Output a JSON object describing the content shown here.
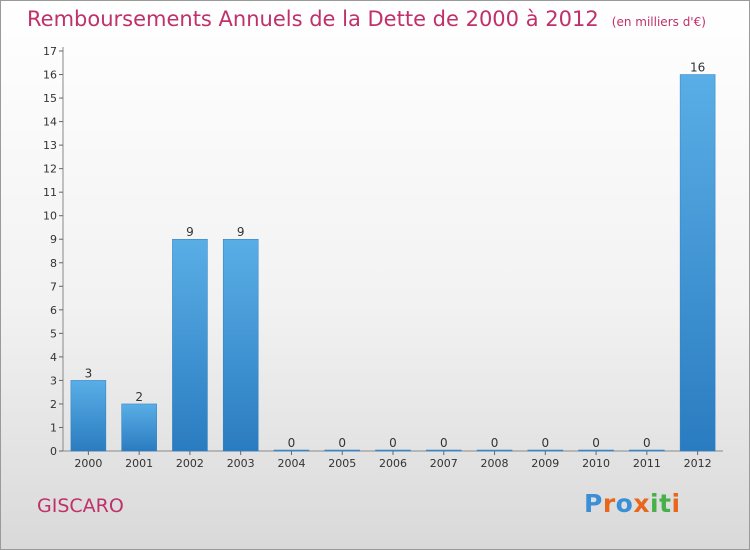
{
  "title": "Remboursements Annuels de la Dette de 2000 à 2012",
  "unit": "(en milliers d'€)",
  "commune": "GISCARO",
  "brand": {
    "letters": [
      "P",
      "r",
      "o",
      "x",
      "i",
      "t",
      "i"
    ]
  },
  "colors": {
    "title": "#c0306a",
    "bar_top": "#5aaee6",
    "bar_bottom": "#2a7cc0",
    "brand_letters": [
      "#3a8fd6",
      "#e8671c",
      "#3a8fd6",
      "#e8671c",
      "#48b048",
      "#48b048",
      "#e8671c"
    ]
  },
  "chart_data": {
    "type": "bar",
    "categories": [
      "2000",
      "2001",
      "2002",
      "2003",
      "2004",
      "2005",
      "2006",
      "2007",
      "2008",
      "2009",
      "2010",
      "2011",
      "2012"
    ],
    "values": [
      3,
      2,
      9,
      9,
      0,
      0,
      0,
      0,
      0,
      0,
      0,
      0,
      16
    ],
    "data_labels": [
      "3",
      "2",
      "9",
      "9",
      "0",
      "0",
      "0",
      "0",
      "0",
      "0",
      "0",
      "0",
      "16"
    ],
    "y_ticks": [
      0,
      1,
      2,
      3,
      4,
      5,
      6,
      7,
      8,
      9,
      10,
      11,
      12,
      13,
      14,
      15,
      16,
      17
    ],
    "ylim": [
      0,
      17
    ],
    "grid": false,
    "legend": "none"
  }
}
